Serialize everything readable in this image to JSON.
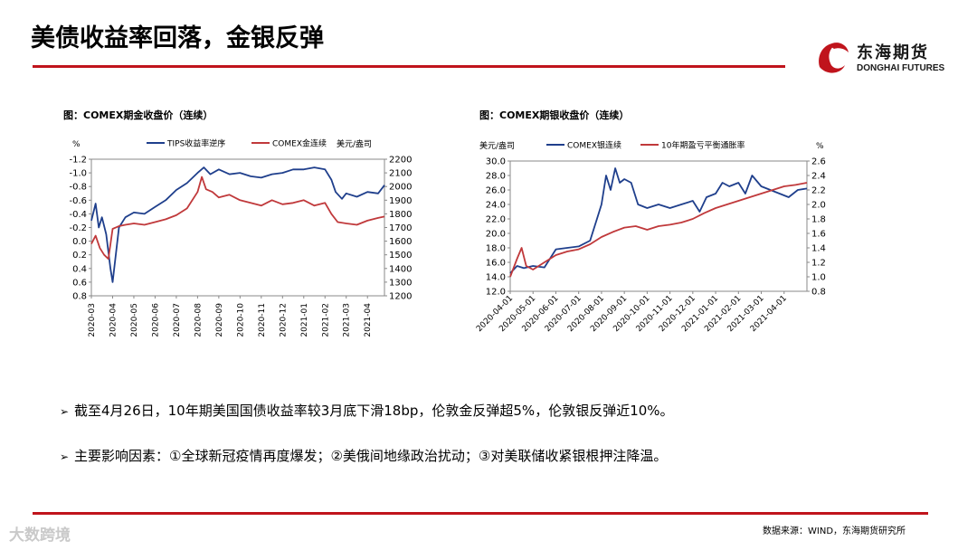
{
  "header": {
    "title": "美债收益率回落，金银反弹",
    "logo_cn": "东海期货",
    "logo_en": "DONGHAI FUTURES"
  },
  "colors": {
    "accent": "#c0141c",
    "blue": "#1f3f8c",
    "red": "#c0393b"
  },
  "chart_data": [
    {
      "type": "line",
      "title": "图：COMEX期金收盘价（连续）",
      "left_unit": "%",
      "right_unit": "美元/盎司",
      "x_ticks": [
        "2020-03",
        "2020-04",
        "2020-05",
        "2020-06",
        "2020-07",
        "2020-08",
        "2020-09",
        "2020-10",
        "2020-11",
        "2020-12",
        "2021-01",
        "2021-02",
        "2021-03",
        "2021-04"
      ],
      "left_axis": {
        "reversed": true,
        "ylim": [
          0.8,
          -1.2
        ],
        "ticks": [
          "-1.2",
          "-1.0",
          "-0.8",
          "-0.6",
          "-0.4",
          "-0.2",
          "0.0",
          "0.2",
          "0.4",
          "0.6",
          "0.8"
        ]
      },
      "right_axis": {
        "ylim": [
          1200,
          2200
        ],
        "ticks": [
          "2200",
          "2100",
          "2000",
          "1900",
          "1800",
          "1700",
          "1600",
          "1500",
          "1400",
          "1300",
          "1200"
        ]
      },
      "series": [
        {
          "name": "TIPS收益率逆序",
          "axis": "left",
          "color": "#1f3f8c",
          "x": [
            0,
            0.2,
            0.35,
            0.5,
            0.7,
            0.9,
            1,
            1.3,
            1.6,
            2,
            2.5,
            3,
            3.5,
            4,
            4.5,
            5,
            5.3,
            5.6,
            6,
            6.5,
            7,
            7.5,
            8,
            8.5,
            9,
            9.5,
            10,
            10.5,
            11,
            11.3,
            11.5,
            11.8,
            12,
            12.5,
            13,
            13.5,
            13.8
          ],
          "y": [
            -0.3,
            -0.55,
            -0.2,
            -0.35,
            -0.1,
            0.4,
            0.6,
            -0.2,
            -0.35,
            -0.42,
            -0.4,
            -0.5,
            -0.6,
            -0.75,
            -0.85,
            -1.0,
            -1.08,
            -0.98,
            -1.05,
            -0.98,
            -1.0,
            -0.95,
            -0.93,
            -0.98,
            -1.0,
            -1.05,
            -1.05,
            -1.08,
            -1.05,
            -0.9,
            -0.72,
            -0.62,
            -0.7,
            -0.65,
            -0.72,
            -0.7,
            -0.82
          ]
        },
        {
          "name": "COMEX金连续",
          "axis": "right",
          "color": "#c0393b",
          "x": [
            0,
            0.2,
            0.4,
            0.6,
            0.8,
            1,
            1.3,
            1.6,
            2,
            2.5,
            3,
            3.5,
            4,
            4.5,
            5,
            5.2,
            5.4,
            5.7,
            6,
            6.5,
            7,
            7.5,
            8,
            8.5,
            9,
            9.5,
            10,
            10.5,
            11,
            11.3,
            11.6,
            12,
            12.5,
            13,
            13.5,
            13.8
          ],
          "y": [
            1580,
            1640,
            1550,
            1500,
            1470,
            1690,
            1710,
            1720,
            1730,
            1720,
            1740,
            1760,
            1790,
            1840,
            1960,
            2070,
            1980,
            1960,
            1920,
            1940,
            1900,
            1880,
            1860,
            1900,
            1870,
            1880,
            1900,
            1860,
            1880,
            1800,
            1740,
            1730,
            1720,
            1750,
            1770,
            1780
          ]
        }
      ]
    },
    {
      "type": "line",
      "title": "图：COMEX期银收盘价（连续）",
      "left_unit": "美元/盎司",
      "right_unit": "%",
      "x_ticks": [
        "2020-04-01",
        "2020-05-01",
        "2020-06-01",
        "2020-07-01",
        "2020-08-01",
        "2020-09-01",
        "2020-10-01",
        "2020-11-01",
        "2020-12-01",
        "2021-01-01",
        "2021-02-01",
        "2021-03-01",
        "2021-04-01"
      ],
      "left_axis": {
        "ylim": [
          12,
          30
        ],
        "ticks": [
          "30.0",
          "28.0",
          "26.0",
          "24.0",
          "22.0",
          "20.0",
          "18.0",
          "16.0",
          "14.0",
          "12.0"
        ]
      },
      "right_axis": {
        "ylim": [
          0.8,
          2.6
        ],
        "ticks": [
          "2.6",
          "2.4",
          "2.2",
          "2.0",
          "1.8",
          "1.6",
          "1.4",
          "1.2",
          "1.0",
          "0.8"
        ]
      },
      "series": [
        {
          "name": "COMEX银连续",
          "axis": "left",
          "color": "#1f3f8c",
          "x": [
            0,
            0.3,
            0.6,
            1,
            1.5,
            2,
            2.5,
            3,
            3.5,
            3.8,
            4,
            4.2,
            4.4,
            4.6,
            4.8,
            5,
            5.3,
            5.6,
            6,
            6.5,
            7,
            7.5,
            8,
            8.3,
            8.6,
            9,
            9.3,
            9.6,
            10,
            10.3,
            10.6,
            11,
            11.4,
            11.8,
            12.2,
            12.6,
            13
          ],
          "y": [
            14.5,
            15.5,
            15.2,
            15.5,
            15.3,
            17.8,
            18.0,
            18.2,
            19.0,
            22.0,
            24.0,
            28.0,
            26.0,
            29.0,
            27.0,
            27.5,
            27.0,
            24.0,
            23.5,
            24.0,
            23.5,
            24.0,
            24.5,
            23.0,
            25.0,
            25.5,
            27.0,
            26.5,
            27.0,
            25.5,
            28.0,
            26.5,
            26.0,
            25.5,
            25.0,
            26.0,
            26.2
          ]
        },
        {
          "name": "10年期盈亏平衡通胀率",
          "axis": "right",
          "color": "#c0393b",
          "x": [
            0,
            0.3,
            0.5,
            0.7,
            1,
            1.5,
            2,
            2.5,
            3,
            3.5,
            4,
            4.5,
            5,
            5.5,
            6,
            6.5,
            7,
            7.5,
            8,
            8.5,
            9,
            9.5,
            10,
            10.5,
            11,
            11.5,
            12,
            12.5,
            13
          ],
          "y": [
            1.0,
            1.25,
            1.4,
            1.15,
            1.1,
            1.2,
            1.3,
            1.35,
            1.38,
            1.45,
            1.55,
            1.62,
            1.68,
            1.7,
            1.65,
            1.7,
            1.72,
            1.75,
            1.8,
            1.88,
            1.95,
            2.0,
            2.05,
            2.1,
            2.15,
            2.2,
            2.25,
            2.27,
            2.3
          ]
        }
      ]
    }
  ],
  "bullets": [
    "截至4月26日，10年期美国国债收益率较3月底下滑18bp，伦敦金反弹超5%，伦敦银反弹近10%。",
    "主要影响因素：①全球新冠疫情再度爆发；②美俄间地缘政治扰动；③对美联储收紧银根押注降温。"
  ],
  "bullet_icon": "arrow-bullet-icon",
  "footer": {
    "source": "数据来源：WIND，东海期货研究所",
    "watermark": "大数跨境"
  }
}
